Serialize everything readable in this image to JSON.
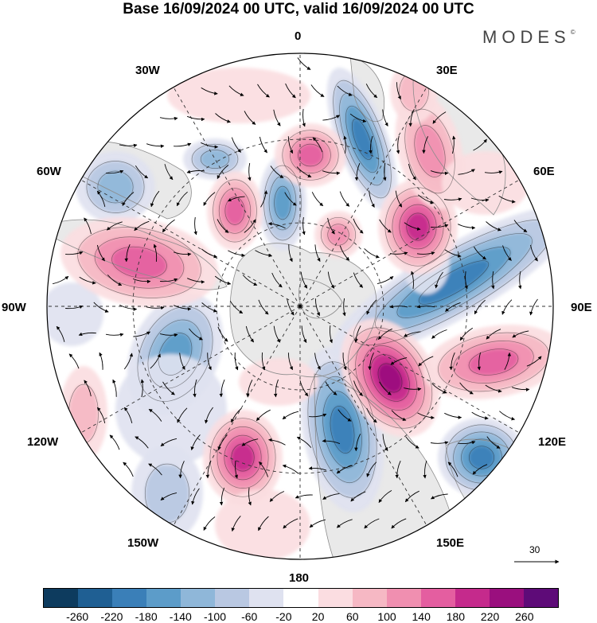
{
  "title": "Base 16/09/2024 00 UTC, valid 16/09/2024 00 UTC",
  "brand": "MODES",
  "brand_mark": "©",
  "longitude_labels": {
    "top": "0",
    "top_right": "30E",
    "right_upper": "60E",
    "right": "90E",
    "right_lower": "120E",
    "bottom_right": "150E",
    "bottom": "180",
    "bottom_left": "150W",
    "left_lower": "120W",
    "left": "90W",
    "left_upper": "60W",
    "top_left": "30W"
  },
  "reference_vector": "30",
  "colorbar": {
    "colors": [
      "#0d3b5e",
      "#1f5f93",
      "#3a7fb8",
      "#5c9cc9",
      "#8fb7d9",
      "#b9c8e2",
      "#dfe2f0",
      "#ffffff",
      "#fbdde1",
      "#f6b8c4",
      "#f08fb0",
      "#e45ea0",
      "#c52a8c",
      "#9a0f7e",
      "#5e0b78"
    ],
    "tick_labels": [
      "-260",
      "-220",
      "-180",
      "-140",
      "-100",
      "-60",
      "-20",
      "20",
      "60",
      "100",
      "140",
      "180",
      "220",
      "260"
    ]
  },
  "palette": {
    "land": "#e9e9e9",
    "coast": "#8c8c8c",
    "grid": "#333333"
  }
}
